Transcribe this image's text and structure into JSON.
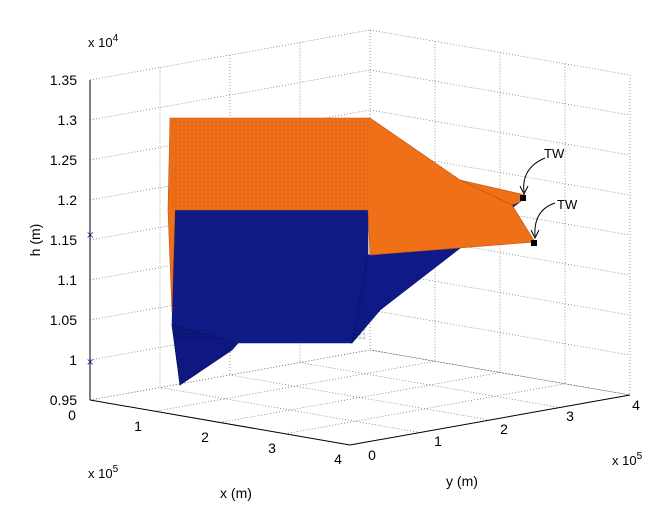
{
  "chart_data": {
    "type": "3d-surface",
    "title": "",
    "xlabel": "x (m)",
    "ylabel": "y (m)",
    "zlabel": "h (m)",
    "x_multiplier": "x 10",
    "x_multiplier_exp": "5",
    "y_multiplier": "x 10",
    "y_multiplier_exp": "5",
    "z_multiplier": "x 10",
    "z_multiplier_exp": "4",
    "x_ticks": [
      "0",
      "1",
      "2",
      "3",
      "4"
    ],
    "y_ticks": [
      "0",
      "1",
      "2",
      "3",
      "4"
    ],
    "z_ticks": [
      "0.95",
      "1",
      "1.05",
      "1.1",
      "1.15",
      "1.2",
      "1.25",
      "1.3",
      "1.35"
    ],
    "xlim": [
      0,
      4
    ],
    "ylim": [
      0,
      4
    ],
    "zlim": [
      0.95,
      1.35
    ],
    "grid": true,
    "colors": {
      "upper_surface": "#f07018",
      "lower_surface": "#101c8c",
      "marker": "#2c2cc8"
    },
    "series": [
      {
        "color": "orange",
        "h": 1.3,
        "vertices_xyh": [
          [
            0.9,
            0.05,
            1.3
          ],
          [
            0.9,
            2.0,
            1.3
          ],
          [
            3.4,
            2.1,
            1.16
          ],
          [
            3.5,
            3.6,
            1.16
          ]
        ]
      },
      {
        "color": "navy",
        "h": 1.18,
        "vertices_xyh": [
          [
            1.1,
            0.05,
            1.18
          ],
          [
            1.1,
            1.6,
            1.18
          ],
          [
            3.3,
            1.8,
            1.14
          ],
          [
            3.5,
            3.7,
            1.2
          ]
        ]
      }
    ],
    "annotations": [
      {
        "text": "TW"
      },
      {
        "text": "TW"
      }
    ],
    "z_markers": [
      1.0,
      1.16
    ]
  }
}
